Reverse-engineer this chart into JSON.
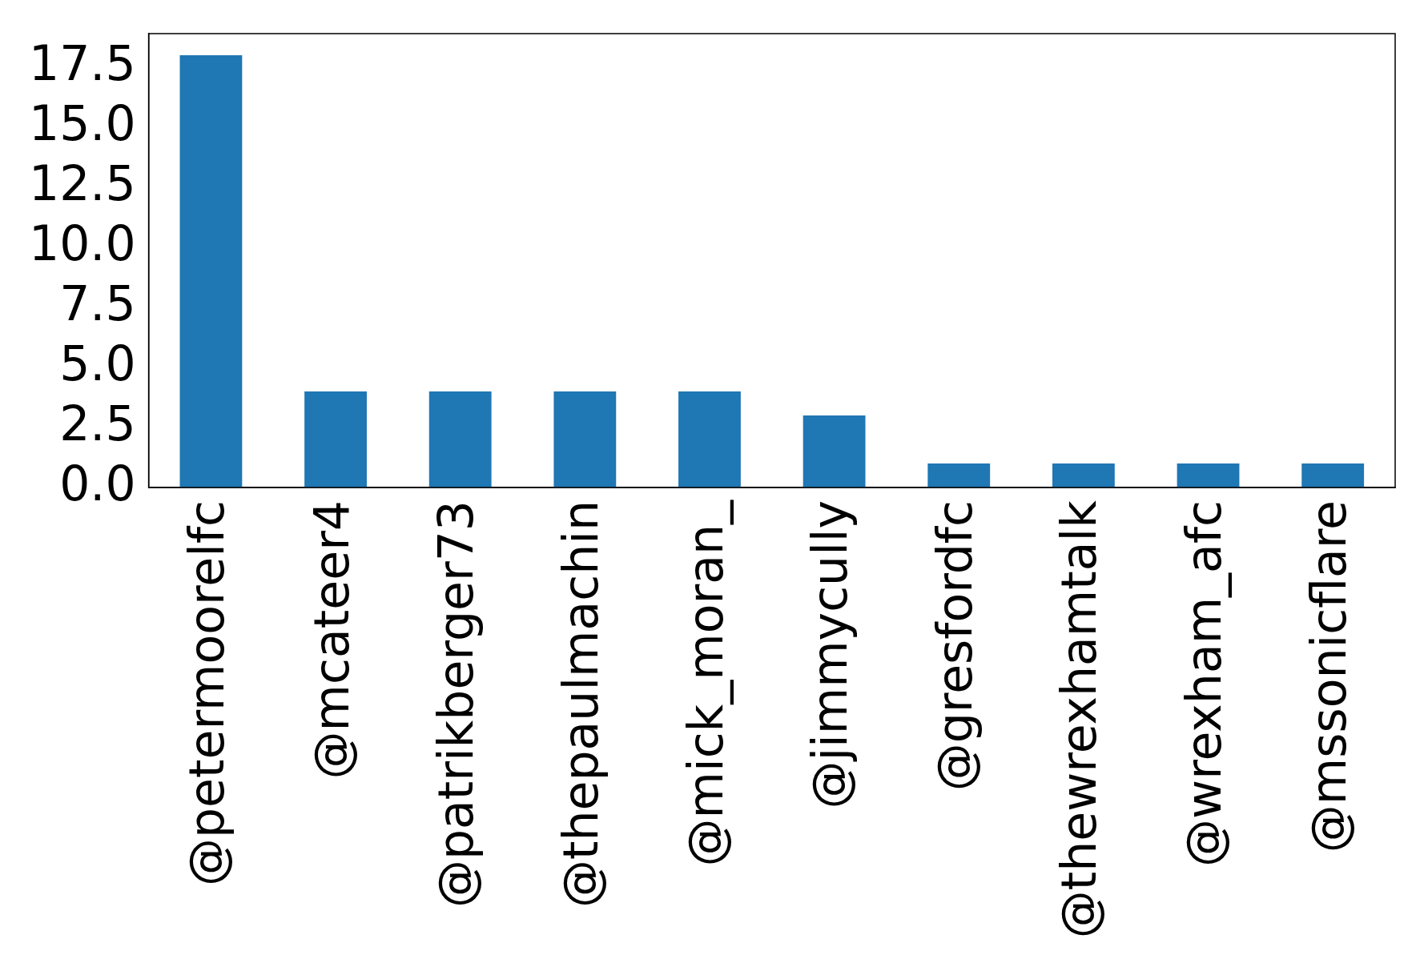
{
  "chart_data": {
    "type": "bar",
    "categories": [
      "@petermoorelfc",
      "@mcateer4",
      "@patrikberger73",
      "@thepaulmachin",
      "@mick_moran_",
      "@jimmycully",
      "@gresfordfc",
      "@thewrexhamtalk",
      "@wrexham_afc",
      "@mssonicflare"
    ],
    "values": [
      18,
      4,
      4,
      4,
      4,
      3,
      1,
      1,
      1,
      1
    ],
    "color": "#1f77b4",
    "ylim": [
      0,
      18.9
    ],
    "yticks": [
      {
        "value": 0,
        "label": "0.0"
      },
      2.5,
      {
        "value": 5,
        "label": "5.0"
      },
      7.5,
      {
        "value": 10,
        "label": "10.0"
      },
      12.5,
      {
        "value": 15,
        "label": "15.0"
      },
      17.5
    ],
    "grid": false,
    "legend": false
  }
}
